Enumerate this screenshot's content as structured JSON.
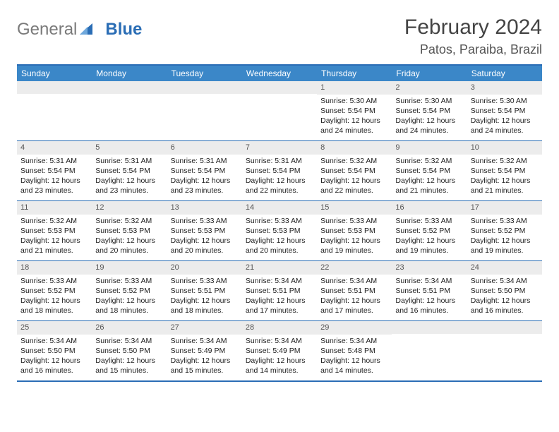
{
  "logo": {
    "gray": "General",
    "blue": "Blue"
  },
  "title": "February 2024",
  "location": "Patos, Paraiba, Brazil",
  "colors": {
    "header_bg": "#3b87c8",
    "border": "#2a6db5",
    "daynum_bg": "#ececec"
  },
  "weekdays": [
    "Sunday",
    "Monday",
    "Tuesday",
    "Wednesday",
    "Thursday",
    "Friday",
    "Saturday"
  ],
  "weeks": [
    [
      {
        "n": "",
        "sr": "",
        "ss": "",
        "dl": ""
      },
      {
        "n": "",
        "sr": "",
        "ss": "",
        "dl": ""
      },
      {
        "n": "",
        "sr": "",
        "ss": "",
        "dl": ""
      },
      {
        "n": "",
        "sr": "",
        "ss": "",
        "dl": ""
      },
      {
        "n": "1",
        "sr": "Sunrise: 5:30 AM",
        "ss": "Sunset: 5:54 PM",
        "dl": "Daylight: 12 hours and 24 minutes."
      },
      {
        "n": "2",
        "sr": "Sunrise: 5:30 AM",
        "ss": "Sunset: 5:54 PM",
        "dl": "Daylight: 12 hours and 24 minutes."
      },
      {
        "n": "3",
        "sr": "Sunrise: 5:30 AM",
        "ss": "Sunset: 5:54 PM",
        "dl": "Daylight: 12 hours and 24 minutes."
      }
    ],
    [
      {
        "n": "4",
        "sr": "Sunrise: 5:31 AM",
        "ss": "Sunset: 5:54 PM",
        "dl": "Daylight: 12 hours and 23 minutes."
      },
      {
        "n": "5",
        "sr": "Sunrise: 5:31 AM",
        "ss": "Sunset: 5:54 PM",
        "dl": "Daylight: 12 hours and 23 minutes."
      },
      {
        "n": "6",
        "sr": "Sunrise: 5:31 AM",
        "ss": "Sunset: 5:54 PM",
        "dl": "Daylight: 12 hours and 23 minutes."
      },
      {
        "n": "7",
        "sr": "Sunrise: 5:31 AM",
        "ss": "Sunset: 5:54 PM",
        "dl": "Daylight: 12 hours and 22 minutes."
      },
      {
        "n": "8",
        "sr": "Sunrise: 5:32 AM",
        "ss": "Sunset: 5:54 PM",
        "dl": "Daylight: 12 hours and 22 minutes."
      },
      {
        "n": "9",
        "sr": "Sunrise: 5:32 AM",
        "ss": "Sunset: 5:54 PM",
        "dl": "Daylight: 12 hours and 21 minutes."
      },
      {
        "n": "10",
        "sr": "Sunrise: 5:32 AM",
        "ss": "Sunset: 5:54 PM",
        "dl": "Daylight: 12 hours and 21 minutes."
      }
    ],
    [
      {
        "n": "11",
        "sr": "Sunrise: 5:32 AM",
        "ss": "Sunset: 5:53 PM",
        "dl": "Daylight: 12 hours and 21 minutes."
      },
      {
        "n": "12",
        "sr": "Sunrise: 5:32 AM",
        "ss": "Sunset: 5:53 PM",
        "dl": "Daylight: 12 hours and 20 minutes."
      },
      {
        "n": "13",
        "sr": "Sunrise: 5:33 AM",
        "ss": "Sunset: 5:53 PM",
        "dl": "Daylight: 12 hours and 20 minutes."
      },
      {
        "n": "14",
        "sr": "Sunrise: 5:33 AM",
        "ss": "Sunset: 5:53 PM",
        "dl": "Daylight: 12 hours and 20 minutes."
      },
      {
        "n": "15",
        "sr": "Sunrise: 5:33 AM",
        "ss": "Sunset: 5:53 PM",
        "dl": "Daylight: 12 hours and 19 minutes."
      },
      {
        "n": "16",
        "sr": "Sunrise: 5:33 AM",
        "ss": "Sunset: 5:52 PM",
        "dl": "Daylight: 12 hours and 19 minutes."
      },
      {
        "n": "17",
        "sr": "Sunrise: 5:33 AM",
        "ss": "Sunset: 5:52 PM",
        "dl": "Daylight: 12 hours and 19 minutes."
      }
    ],
    [
      {
        "n": "18",
        "sr": "Sunrise: 5:33 AM",
        "ss": "Sunset: 5:52 PM",
        "dl": "Daylight: 12 hours and 18 minutes."
      },
      {
        "n": "19",
        "sr": "Sunrise: 5:33 AM",
        "ss": "Sunset: 5:52 PM",
        "dl": "Daylight: 12 hours and 18 minutes."
      },
      {
        "n": "20",
        "sr": "Sunrise: 5:33 AM",
        "ss": "Sunset: 5:51 PM",
        "dl": "Daylight: 12 hours and 18 minutes."
      },
      {
        "n": "21",
        "sr": "Sunrise: 5:34 AM",
        "ss": "Sunset: 5:51 PM",
        "dl": "Daylight: 12 hours and 17 minutes."
      },
      {
        "n": "22",
        "sr": "Sunrise: 5:34 AM",
        "ss": "Sunset: 5:51 PM",
        "dl": "Daylight: 12 hours and 17 minutes."
      },
      {
        "n": "23",
        "sr": "Sunrise: 5:34 AM",
        "ss": "Sunset: 5:51 PM",
        "dl": "Daylight: 12 hours and 16 minutes."
      },
      {
        "n": "24",
        "sr": "Sunrise: 5:34 AM",
        "ss": "Sunset: 5:50 PM",
        "dl": "Daylight: 12 hours and 16 minutes."
      }
    ],
    [
      {
        "n": "25",
        "sr": "Sunrise: 5:34 AM",
        "ss": "Sunset: 5:50 PM",
        "dl": "Daylight: 12 hours and 16 minutes."
      },
      {
        "n": "26",
        "sr": "Sunrise: 5:34 AM",
        "ss": "Sunset: 5:50 PM",
        "dl": "Daylight: 12 hours and 15 minutes."
      },
      {
        "n": "27",
        "sr": "Sunrise: 5:34 AM",
        "ss": "Sunset: 5:49 PM",
        "dl": "Daylight: 12 hours and 15 minutes."
      },
      {
        "n": "28",
        "sr": "Sunrise: 5:34 AM",
        "ss": "Sunset: 5:49 PM",
        "dl": "Daylight: 12 hours and 14 minutes."
      },
      {
        "n": "29",
        "sr": "Sunrise: 5:34 AM",
        "ss": "Sunset: 5:48 PM",
        "dl": "Daylight: 12 hours and 14 minutes."
      },
      {
        "n": "",
        "sr": "",
        "ss": "",
        "dl": ""
      },
      {
        "n": "",
        "sr": "",
        "ss": "",
        "dl": ""
      }
    ]
  ]
}
